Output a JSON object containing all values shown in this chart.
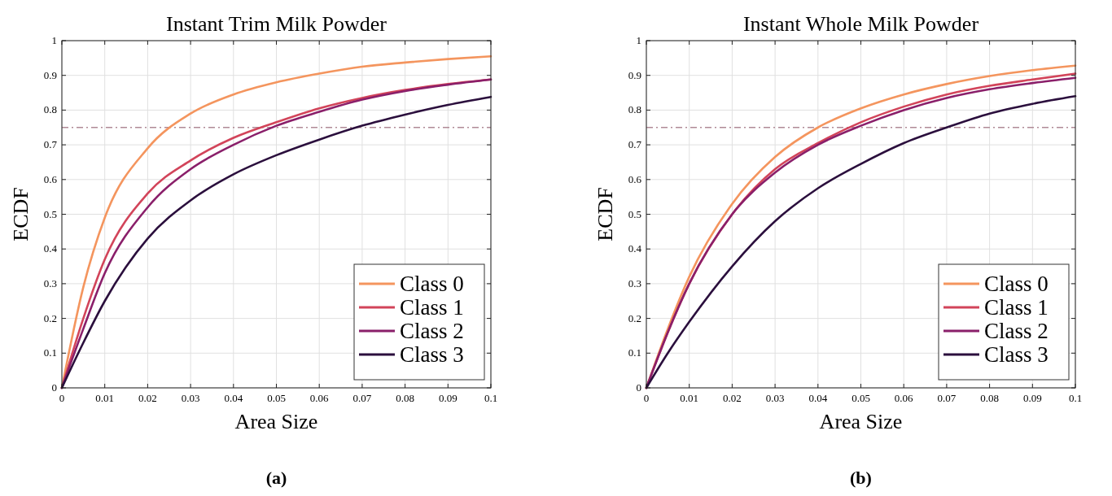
{
  "chart_data": [
    {
      "type": "line",
      "title": "Instant Trim Milk Powder",
      "xlabel": "Area Size",
      "ylabel": "ECDF",
      "x": [
        0,
        0.005,
        0.01,
        0.02,
        0.03,
        0.04,
        0.05,
        0.06,
        0.07,
        0.08,
        0.09,
        0.1
      ],
      "series": [
        {
          "name": "Class 0",
          "color": "#f4955e",
          "values": [
            0,
            0.29,
            0.49,
            0.69,
            0.79,
            0.845,
            0.88,
            0.905,
            0.925,
            0.937,
            0.947,
            0.955
          ]
        },
        {
          "name": "Class 1",
          "color": "#d2445a",
          "values": [
            0,
            0.2,
            0.37,
            0.56,
            0.655,
            0.72,
            0.765,
            0.805,
            0.835,
            0.858,
            0.875,
            0.888
          ]
        },
        {
          "name": "Class 2",
          "color": "#8a1f6a",
          "values": [
            0,
            0.17,
            0.33,
            0.52,
            0.63,
            0.7,
            0.755,
            0.795,
            0.83,
            0.855,
            0.873,
            0.888
          ]
        },
        {
          "name": "Class 3",
          "color": "#2b0f3d",
          "values": [
            0,
            0.13,
            0.25,
            0.43,
            0.54,
            0.615,
            0.67,
            0.715,
            0.755,
            0.787,
            0.815,
            0.838
          ]
        }
      ],
      "xlim": [
        0,
        0.1
      ],
      "xticks": [
        0,
        0.01,
        0.02,
        0.03,
        0.04,
        0.05,
        0.06,
        0.07,
        0.08,
        0.09,
        0.1
      ],
      "ylim": [
        0,
        1
      ],
      "yticks": [
        0,
        0.1,
        0.2,
        0.3,
        0.4,
        0.5,
        0.6,
        0.7,
        0.8,
        0.9,
        1
      ],
      "grid": true,
      "legend": "bottom right",
      "marker": "none",
      "line_style": "solid",
      "ref_lines": [
        {
          "axis": "y",
          "value": 0.75,
          "color": "#b08a96",
          "line_style": "dashed"
        }
      ],
      "annotations": [
        "(a)"
      ]
    },
    {
      "type": "line",
      "title": "Instant Whole Milk Powder",
      "xlabel": "Area Size",
      "ylabel": "ECDF",
      "x": [
        0,
        0.005,
        0.01,
        0.02,
        0.03,
        0.04,
        0.05,
        0.06,
        0.07,
        0.08,
        0.09,
        0.1
      ],
      "series": [
        {
          "name": "Class 0",
          "color": "#f4955e",
          "values": [
            0,
            0.17,
            0.32,
            0.53,
            0.665,
            0.75,
            0.805,
            0.845,
            0.875,
            0.898,
            0.915,
            0.928
          ]
        },
        {
          "name": "Class 1",
          "color": "#d2445a",
          "values": [
            0,
            0.16,
            0.3,
            0.5,
            0.63,
            0.705,
            0.765,
            0.81,
            0.845,
            0.87,
            0.888,
            0.905
          ]
        },
        {
          "name": "Class 2",
          "color": "#8a1f6a",
          "values": [
            0,
            0.16,
            0.3,
            0.5,
            0.62,
            0.7,
            0.755,
            0.8,
            0.835,
            0.86,
            0.878,
            0.893
          ]
        },
        {
          "name": "Class 3",
          "color": "#2b0f3d",
          "values": [
            0,
            0.1,
            0.19,
            0.35,
            0.48,
            0.575,
            0.645,
            0.705,
            0.75,
            0.79,
            0.818,
            0.84
          ]
        }
      ],
      "xlim": [
        0,
        0.1
      ],
      "xticks": [
        0,
        0.01,
        0.02,
        0.03,
        0.04,
        0.05,
        0.06,
        0.07,
        0.08,
        0.09,
        0.1
      ],
      "ylim": [
        0,
        1
      ],
      "yticks": [
        0,
        0.1,
        0.2,
        0.3,
        0.4,
        0.5,
        0.6,
        0.7,
        0.8,
        0.9,
        1
      ],
      "grid": true,
      "legend": "bottom right",
      "marker": "none",
      "line_style": "solid",
      "ref_lines": [
        {
          "axis": "y",
          "value": 0.75,
          "color": "#b08a96",
          "line_style": "dashed"
        }
      ],
      "annotations": [
        "(b)"
      ]
    }
  ]
}
